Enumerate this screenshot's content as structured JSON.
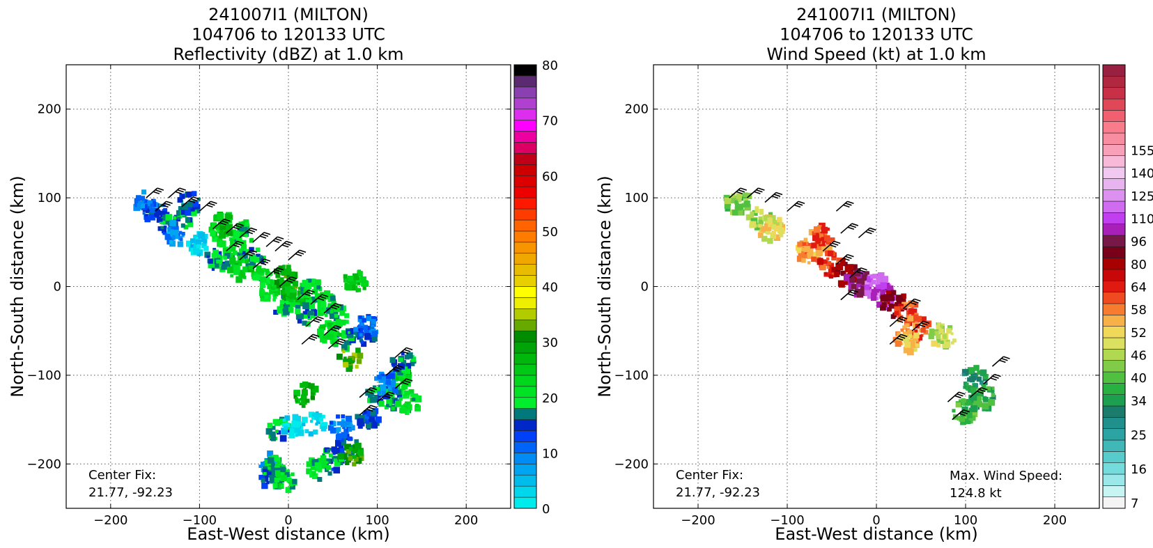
{
  "chart_data": [
    {
      "type": "heatmap",
      "title": [
        "241007I1 (MILTON)",
        "104706 to 120133 UTC",
        "Reflectivity (dBZ) at 1.0 km"
      ],
      "xlabel": "East-West distance (km)",
      "ylabel": "North-South distance (km)",
      "xlim": [
        -250,
        250
      ],
      "ylim": [
        -250,
        250
      ],
      "xticks": [
        -200,
        -100,
        0,
        100,
        200
      ],
      "yticks": [
        -200,
        -100,
        0,
        100,
        200
      ],
      "grid": true,
      "annotations": [
        "Center Fix:",
        "21.77, -92.23"
      ],
      "colorbar": {
        "range": [
          0,
          80
        ],
        "step": 2.5,
        "tick_values": [
          0,
          10,
          20,
          30,
          40,
          50,
          60,
          70,
          80
        ],
        "tick_labels": [
          "0",
          "10",
          "20",
          "30",
          "40",
          "50",
          "60",
          "70",
          "80"
        ],
        "colors": [
          "#00ecec",
          "#00d6ec",
          "#00bcec",
          "#00a4f0",
          "#008cf4",
          "#0064f8",
          "#0040f8",
          "#0028c8",
          "#00787c",
          "#00ee2e",
          "#00e224",
          "#00d61c",
          "#00c814",
          "#00b80c",
          "#00a408",
          "#008c00",
          "#66aa00",
          "#b2cc00",
          "#eeee00",
          "#ffff00",
          "#e8d000",
          "#e8bc00",
          "#f0a800",
          "#f89400",
          "#ff7c00",
          "#ff6400",
          "#ff3c00",
          "#ff1800",
          "#ee0000",
          "#dc0000",
          "#cc0000",
          "#c00018",
          "#dc0064",
          "#ee00a0",
          "#ff00ff",
          "#dd2ef0",
          "#b040d0",
          "#8a40b0",
          "#5c2a70",
          "#000000"
        ]
      },
      "echo_cells": [
        {
          "x": -150,
          "y": 85,
          "dbz": 18
        },
        {
          "x": -135,
          "y": 70,
          "dbz": 20
        },
        {
          "x": -115,
          "y": 78,
          "dbz": 22
        },
        {
          "x": -160,
          "y": 95,
          "dbz": 12
        },
        {
          "x": -125,
          "y": 60,
          "dbz": 11
        },
        {
          "x": -110,
          "y": 95,
          "dbz": 19
        },
        {
          "x": -75,
          "y": 60,
          "dbz": 27
        },
        {
          "x": -60,
          "y": 40,
          "dbz": 25
        },
        {
          "x": -50,
          "y": 60,
          "dbz": 24
        },
        {
          "x": -40,
          "y": 30,
          "dbz": 22
        },
        {
          "x": -30,
          "y": 10,
          "dbz": 26
        },
        {
          "x": -80,
          "y": 30,
          "dbz": 22
        },
        {
          "x": -20,
          "y": -5,
          "dbz": 28
        },
        {
          "x": -5,
          "y": -20,
          "dbz": 22
        },
        {
          "x": -70,
          "y": 70,
          "dbz": 33
        },
        {
          "x": -55,
          "y": 20,
          "dbz": 30
        },
        {
          "x": 0,
          "y": 0,
          "dbz": 38
        },
        {
          "x": -5,
          "y": 10,
          "dbz": 36
        },
        {
          "x": 10,
          "y": -10,
          "dbz": 30
        },
        {
          "x": 25,
          "y": -5,
          "dbz": 24
        },
        {
          "x": 20,
          "y": -30,
          "dbz": 22
        },
        {
          "x": 40,
          "y": -20,
          "dbz": 26
        },
        {
          "x": 55,
          "y": -35,
          "dbz": 24
        },
        {
          "x": 60,
          "y": -60,
          "dbz": 22
        },
        {
          "x": 45,
          "y": -55,
          "dbz": 28
        },
        {
          "x": 85,
          "y": -55,
          "dbz": 20
        },
        {
          "x": 75,
          "y": 5,
          "dbz": 31
        },
        {
          "x": 70,
          "y": -80,
          "dbz": 40
        },
        {
          "x": 88,
          "y": -45,
          "dbz": 14
        },
        {
          "x": 100,
          "y": -120,
          "dbz": 20
        },
        {
          "x": 115,
          "y": -125,
          "dbz": 23
        },
        {
          "x": 125,
          "y": -105,
          "dbz": 27
        },
        {
          "x": 130,
          "y": -85,
          "dbz": 22
        },
        {
          "x": 90,
          "y": -150,
          "dbz": 18
        },
        {
          "x": 110,
          "y": -110,
          "dbz": 12
        },
        {
          "x": 135,
          "y": -130,
          "dbz": 26
        },
        {
          "x": 65,
          "y": -180,
          "dbz": 18
        },
        {
          "x": 50,
          "y": -195,
          "dbz": 21
        },
        {
          "x": 35,
          "y": -205,
          "dbz": 24
        },
        {
          "x": 70,
          "y": -188,
          "dbz": 38
        },
        {
          "x": -20,
          "y": -200,
          "dbz": 12
        },
        {
          "x": -15,
          "y": -205,
          "dbz": 24
        },
        {
          "x": -20,
          "y": -215,
          "dbz": 20
        },
        {
          "x": -5,
          "y": -218,
          "dbz": 24
        },
        {
          "x": -10,
          "y": -162,
          "dbz": 22
        },
        {
          "x": 20,
          "y": -122,
          "dbz": 36
        },
        {
          "x": 5,
          "y": -157,
          "dbz": 3
        },
        {
          "x": 30,
          "y": -155,
          "dbz": 4
        },
        {
          "x": 60,
          "y": -158,
          "dbz": 12
        },
        {
          "x": -100,
          "y": 48,
          "dbz": 4
        }
      ],
      "wind_barbs": [
        {
          "x": -160,
          "y": 100
        },
        {
          "x": -150,
          "y": 85
        },
        {
          "x": -135,
          "y": 100
        },
        {
          "x": -120,
          "y": 90
        },
        {
          "x": -100,
          "y": 85
        },
        {
          "x": -85,
          "y": 65
        },
        {
          "x": -70,
          "y": 60
        },
        {
          "x": -55,
          "y": 55
        },
        {
          "x": -40,
          "y": 50
        },
        {
          "x": -25,
          "y": 45
        },
        {
          "x": -70,
          "y": 40
        },
        {
          "x": -55,
          "y": 30
        },
        {
          "x": -40,
          "y": 20
        },
        {
          "x": -25,
          "y": 10
        },
        {
          "x": -15,
          "y": 40
        },
        {
          "x": 0,
          "y": 30
        },
        {
          "x": -10,
          "y": 0
        },
        {
          "x": 10,
          "y": -15
        },
        {
          "x": 25,
          "y": -20
        },
        {
          "x": 40,
          "y": -30
        },
        {
          "x": 20,
          "y": -45
        },
        {
          "x": 40,
          "y": -55
        },
        {
          "x": 15,
          "y": -65
        },
        {
          "x": 45,
          "y": -70
        },
        {
          "x": 120,
          "y": -80
        },
        {
          "x": 110,
          "y": -100
        },
        {
          "x": 120,
          "y": -115
        },
        {
          "x": 100,
          "y": -130
        },
        {
          "x": 80,
          "y": -125
        },
        {
          "x": 80,
          "y": -145
        }
      ]
    },
    {
      "type": "heatmap",
      "title": [
        "241007I1 (MILTON)",
        "104706 to 120133 UTC",
        "Wind Speed (kt) at 1.0 km"
      ],
      "xlabel": "East-West distance (km)",
      "ylabel": "North-South distance (km)",
      "xlim": [
        -250,
        250
      ],
      "ylim": [
        -250,
        250
      ],
      "xticks": [
        -200,
        -100,
        0,
        100,
        200
      ],
      "yticks": [
        -200,
        -100,
        0,
        100,
        200
      ],
      "grid": true,
      "annotations": [
        "Center Fix:",
        "21.77, -92.23",
        "Max. Wind Speed:",
        "124.8 kt"
      ],
      "max_wind_speed_kt": 124.8,
      "colorbar": {
        "tick_labels": [
          "7",
          "16",
          "25",
          "34",
          "40",
          "46",
          "52",
          "58",
          "64",
          "80",
          "96",
          "110",
          "125",
          "140",
          "155"
        ],
        "tick_bins": [
          1,
          4,
          7,
          10,
          12,
          14,
          16,
          18,
          20,
          22,
          24,
          26,
          28,
          30,
          32
        ],
        "colors": [
          "#f4f4f4",
          "#c8f4f4",
          "#9ae8ea",
          "#74dcdc",
          "#58cccc",
          "#40b8b8",
          "#2ca4a4",
          "#20908c",
          "#1c7c6c",
          "#1ca050",
          "#28b040",
          "#50c040",
          "#80cc48",
          "#b0d850",
          "#dce060",
          "#f0d858",
          "#f8b048",
          "#f87c30",
          "#f04a20",
          "#e01a10",
          "#c80808",
          "#a80000",
          "#780018",
          "#781848",
          "#a820b8",
          "#c040f0",
          "#d06cf0",
          "#dc90f0",
          "#e8b4f0",
          "#f0c8f0",
          "#f8b8d8",
          "#f8a0b8",
          "#f88ca0",
          "#f87c8c",
          "#f06070",
          "#e04858",
          "#c83048",
          "#b02840",
          "#982040"
        ]
      },
      "wind_cells": [
        {
          "x": -155,
          "y": 95,
          "kt": 38
        },
        {
          "x": -130,
          "y": 75,
          "kt": 42
        },
        {
          "x": -118,
          "y": 65,
          "kt": 48
        },
        {
          "x": -75,
          "y": 40,
          "kt": 54
        },
        {
          "x": -60,
          "y": 55,
          "kt": 56
        },
        {
          "x": -50,
          "y": 25,
          "kt": 60
        },
        {
          "x": -35,
          "y": 15,
          "kt": 75
        },
        {
          "x": -20,
          "y": 5,
          "kt": 90
        },
        {
          "x": 0,
          "y": 0,
          "kt": 110
        },
        {
          "x": 10,
          "y": -10,
          "kt": 96
        },
        {
          "x": 20,
          "y": -20,
          "kt": 80
        },
        {
          "x": 35,
          "y": -30,
          "kt": 58
        },
        {
          "x": 45,
          "y": -45,
          "kt": 56
        },
        {
          "x": 35,
          "y": -60,
          "kt": 52
        },
        {
          "x": 75,
          "y": -55,
          "kt": 44
        },
        {
          "x": 110,
          "y": -105,
          "kt": 30
        },
        {
          "x": 120,
          "y": -125,
          "kt": 34
        },
        {
          "x": 100,
          "y": -140,
          "kt": 36
        }
      ],
      "wind_barbs": [
        {
          "x": -165,
          "y": 100
        },
        {
          "x": -145,
          "y": 100
        },
        {
          "x": -125,
          "y": 95
        },
        {
          "x": -100,
          "y": 85
        },
        {
          "x": -45,
          "y": 85
        },
        {
          "x": -40,
          "y": 60
        },
        {
          "x": -20,
          "y": 55
        },
        {
          "x": -60,
          "y": 40
        },
        {
          "x": -45,
          "y": 25
        },
        {
          "x": -30,
          "y": 10
        },
        {
          "x": -40,
          "y": -15
        },
        {
          "x": 30,
          "y": -25
        },
        {
          "x": 15,
          "y": -45
        },
        {
          "x": 40,
          "y": -50
        },
        {
          "x": 15,
          "y": -65
        },
        {
          "x": 130,
          "y": -90
        },
        {
          "x": 120,
          "y": -110
        },
        {
          "x": 105,
          "y": -125
        },
        {
          "x": 80,
          "y": -130
        },
        {
          "x": 85,
          "y": -150
        }
      ]
    }
  ]
}
